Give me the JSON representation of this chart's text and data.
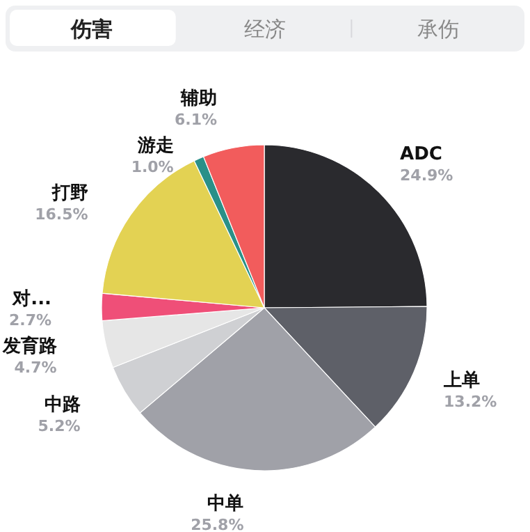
{
  "chart_data": {
    "type": "pie",
    "annotations": [
      "伤害",
      "经济",
      "承伤"
    ],
    "categories": [
      "ADC",
      "上单",
      "中单",
      "中路",
      "发育路",
      "对...",
      "打野",
      "游走",
      "辅助"
    ],
    "values": [
      24.9,
      13.2,
      25.8,
      5.2,
      4.7,
      2.7,
      16.5,
      1.0,
      6.1
    ],
    "value_labels": [
      "24.9%",
      "13.2%",
      "25.8%",
      "5.2%",
      "4.7%",
      "2.7%",
      "16.5%",
      "1.0%",
      "6.1%"
    ],
    "colors": [
      "#2a2a2e",
      "#5e6068",
      "#a0a1a8",
      "#cfd0d3",
      "#e6e6e6",
      "#ef4f78",
      "#e3d253",
      "#2a9088",
      "#f25c5c"
    ]
  }
}
